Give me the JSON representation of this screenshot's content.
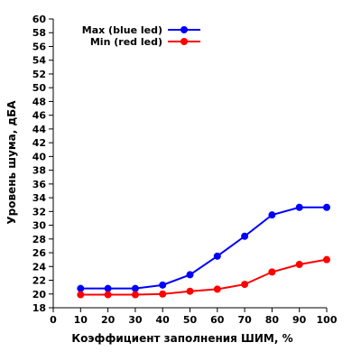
{
  "chart_data": {
    "type": "line",
    "title": "",
    "xlabel": "Коэффициент заполнения ШИМ, %",
    "ylabel": "Уровень шума, дБА",
    "xlim": [
      0,
      100
    ],
    "ylim": [
      18,
      60
    ],
    "x_ticks": [
      0,
      10,
      20,
      30,
      40,
      50,
      60,
      70,
      80,
      90,
      100
    ],
    "y_ticks": [
      18,
      20,
      22,
      24,
      26,
      28,
      30,
      32,
      34,
      36,
      38,
      40,
      42,
      44,
      46,
      48,
      50,
      52,
      54,
      56,
      58,
      60
    ],
    "x": [
      10,
      20,
      30,
      40,
      50,
      60,
      70,
      80,
      90,
      100
    ],
    "series": [
      {
        "name": "Max (blue led)",
        "color": "#0000ff",
        "values": [
          20.8,
          20.8,
          20.8,
          21.3,
          22.8,
          25.5,
          28.4,
          31.5,
          32.6,
          32.6
        ]
      },
      {
        "name": "Min (red led)",
        "color": "#ff0000",
        "values": [
          19.9,
          19.9,
          19.9,
          20.0,
          20.4,
          20.7,
          21.4,
          23.2,
          24.3,
          25.0
        ]
      }
    ],
    "grid": false,
    "legend_position": "top-left"
  }
}
